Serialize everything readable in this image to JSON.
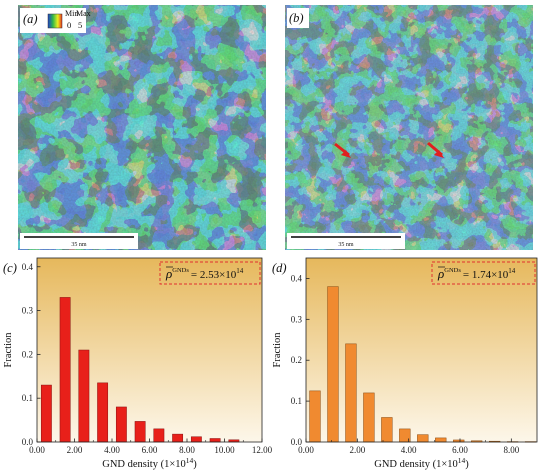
{
  "maps": [
    {
      "panel_label": "(a)",
      "scale_bar_label": "35 nm",
      "legend": {
        "min_label": "Min",
        "max_label": "Max",
        "min_value": "0",
        "max_value": "5"
      },
      "colors": {
        "low": "#1f3fc8",
        "mid": "#2fb84a",
        "high": "#e8f020"
      }
    },
    {
      "panel_label": "(b)",
      "scale_bar_label": "35 nm",
      "colors": {
        "low": "#2a48d0",
        "mid": "#35b550",
        "high": "#d8ec30",
        "arrow": "#e02020"
      }
    }
  ],
  "chart_data": [
    {
      "type": "bar",
      "panel_label": "(c)",
      "annotation": {
        "symbol": "ρ",
        "superscript": "GNDs",
        "value": "= 2.53×10",
        "exponent": "14"
      },
      "xlabel": "GND density (1×10",
      "xlabel_exp": "14",
      "xlabel_close": ")",
      "ylabel": "Fraction",
      "xlim": [
        0,
        12
      ],
      "ylim": [
        0,
        0.42
      ],
      "x_ticks": [
        0,
        2,
        4,
        6,
        8,
        10,
        12
      ],
      "x_tick_labels": [
        "0.00",
        "2.00",
        "4.00",
        "6.00",
        "8.00",
        "10.00",
        "12.00"
      ],
      "y_ticks": [
        0,
        0.1,
        0.2,
        0.3,
        0.4
      ],
      "y_tick_labels": [
        "0.0",
        "0.1",
        "0.2",
        "0.3",
        "0.4"
      ],
      "bar_width": 0.55,
      "x": [
        0.5,
        1.5,
        2.5,
        3.5,
        4.5,
        5.5,
        6.5,
        7.5,
        8.5,
        9.5,
        10.5
      ],
      "values": [
        0.13,
        0.33,
        0.21,
        0.135,
        0.08,
        0.047,
        0.03,
        0.018,
        0.012,
        0.008,
        0.005
      ],
      "bar_color": "#e8201a",
      "bar_edge": "#8a1010",
      "bg_top": "#e6b85c",
      "bg_bottom": "#fdf7ea",
      "annotation_border": "#e03030"
    },
    {
      "type": "bar",
      "panel_label": "(d)",
      "annotation": {
        "symbol": "ρ",
        "superscript": "GNDs",
        "value": "= 1.74×10",
        "exponent": "14"
      },
      "xlabel": "GND density (1×10",
      "xlabel_exp": "14",
      "xlabel_close": ")",
      "ylabel": "Fraction",
      "xlim": [
        0,
        9
      ],
      "ylim": [
        0,
        0.45
      ],
      "x_ticks": [
        0,
        2,
        4,
        6,
        8
      ],
      "x_tick_labels": [
        "0.00",
        "2.00",
        "4.00",
        "6.00",
        "8.00"
      ],
      "y_ticks": [
        0,
        0.1,
        0.2,
        0.3,
        0.4
      ],
      "y_tick_labels": [
        "0.0",
        "0.1",
        "0.2",
        "0.3",
        "0.4"
      ],
      "bar_width": 0.42,
      "x": [
        0.35,
        1.05,
        1.75,
        2.45,
        3.15,
        3.85,
        4.55,
        5.25,
        5.95,
        6.65,
        7.35,
        8.05,
        8.75
      ],
      "values": [
        0.125,
        0.38,
        0.24,
        0.12,
        0.06,
        0.032,
        0.018,
        0.01,
        0.005,
        0.003,
        0.002,
        0.001,
        0.001
      ],
      "bar_color": "#f08a30",
      "bar_edge": "#8a4a10",
      "bg_top": "#e6b85c",
      "bg_bottom": "#fdf7ea",
      "annotation_border": "#e03030"
    }
  ]
}
